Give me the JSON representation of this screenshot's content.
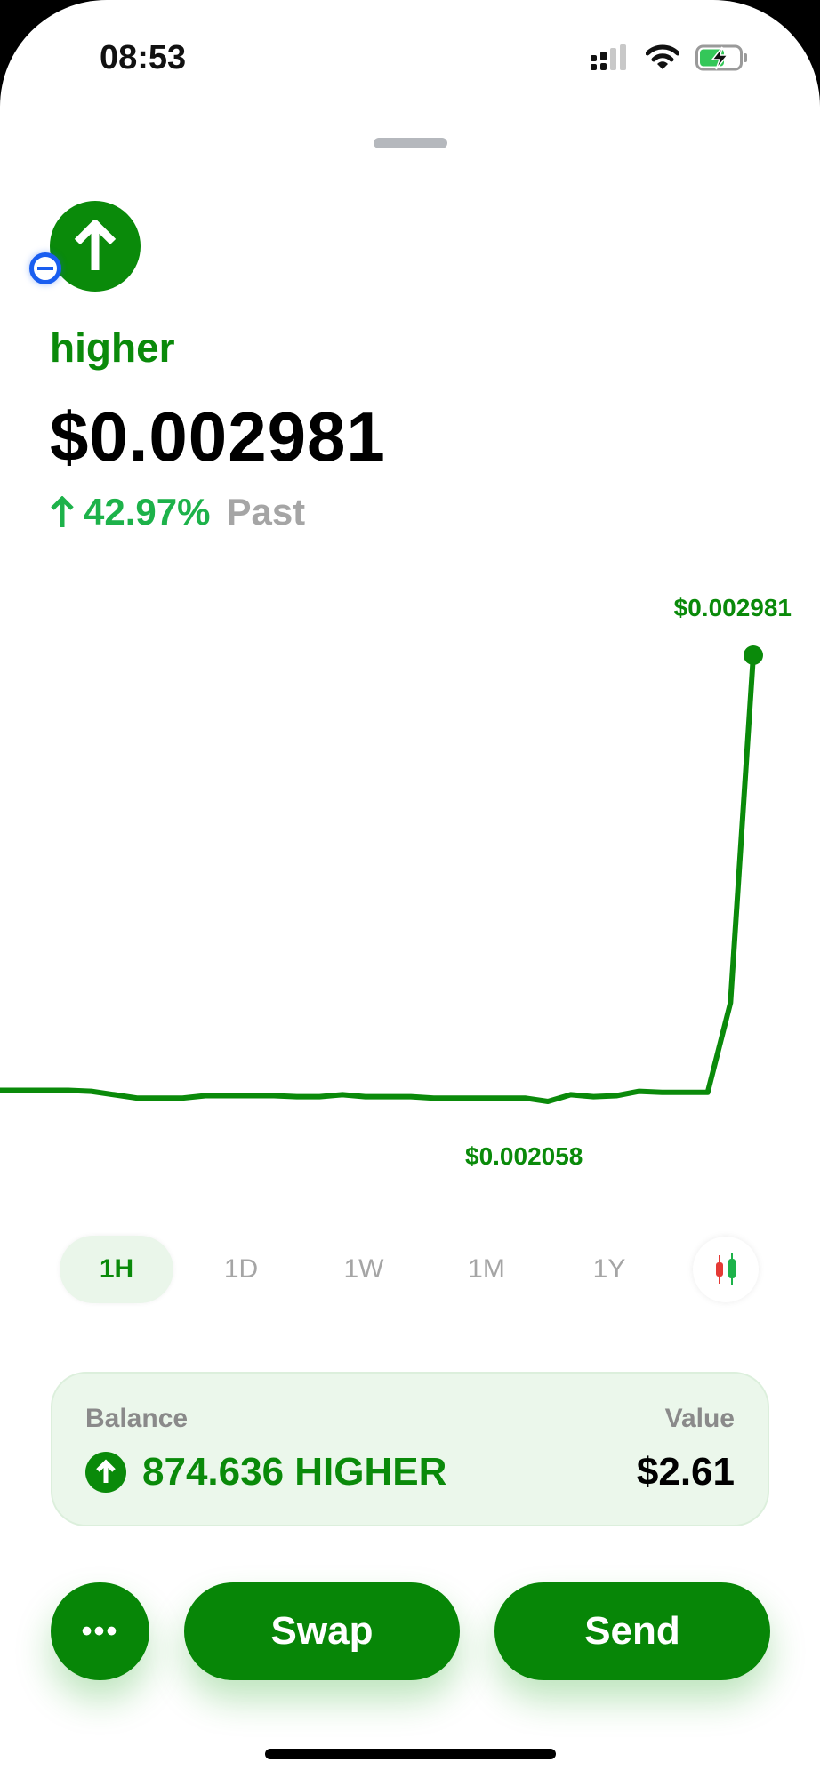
{
  "status_bar": {
    "time": "08:53",
    "icons": [
      "signal-icon",
      "wifi-icon",
      "battery-charging-icon"
    ]
  },
  "token": {
    "name": "higher",
    "price": "$0.002981",
    "change_percent": "42.97%",
    "change_direction": "up",
    "change_period": "Past",
    "icon": "arrow-up-icon",
    "badge_icon": "remove-icon"
  },
  "colors": {
    "brand_green": "#0a8a0a",
    "change_green": "#1db24a",
    "muted_gray": "#a5a5a5",
    "badge_blue": "#1a5ef0"
  },
  "chart_data": {
    "type": "line",
    "max_label": "$0.002981",
    "min_label": "$0.002058",
    "ylim": [
      0.002058,
      0.002981
    ],
    "grid": false,
    "values": [
      0.002081,
      0.002081,
      0.002081,
      0.002081,
      0.002079,
      0.002072,
      0.002065,
      0.002065,
      0.002065,
      0.00207,
      0.00207,
      0.00207,
      0.00207,
      0.002068,
      0.002068,
      0.002072,
      0.002068,
      0.002068,
      0.002068,
      0.002065,
      0.002065,
      0.002065,
      0.002065,
      0.002065,
      0.002058,
      0.002072,
      0.002068,
      0.00207,
      0.002079,
      0.002077,
      0.002077,
      0.002077,
      0.002262,
      0.002981
    ]
  },
  "timeframes": [
    {
      "label": "1H",
      "active": true
    },
    {
      "label": "1D",
      "active": false
    },
    {
      "label": "1W",
      "active": false
    },
    {
      "label": "1M",
      "active": false
    },
    {
      "label": "1Y",
      "active": false
    }
  ],
  "balance": {
    "balance_label": "Balance",
    "value_label": "Value",
    "amount": "874.636 HIGHER",
    "value": "$2.61"
  },
  "actions": {
    "more_label": "•••",
    "swap_label": "Swap",
    "send_label": "Send"
  }
}
